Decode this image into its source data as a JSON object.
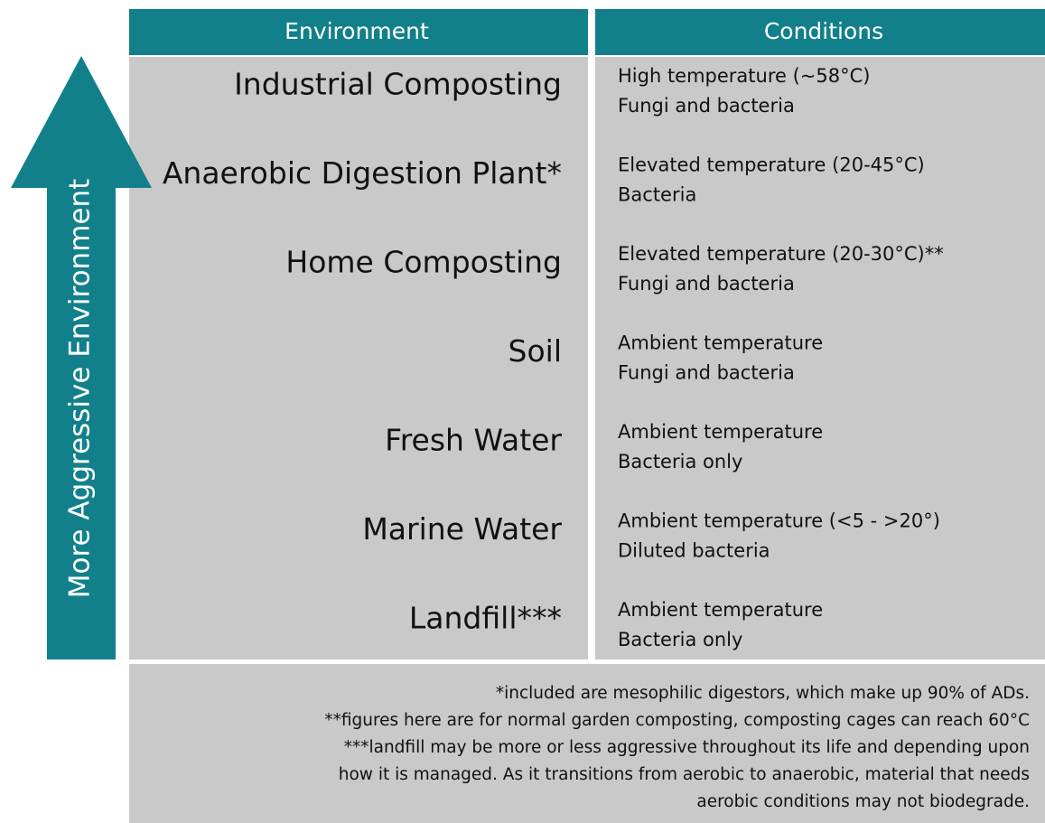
{
  "header": {
    "columns": [
      "Environment",
      "Conditions"
    ]
  },
  "arrow_label": "More Aggressive Environment",
  "rows": [
    {
      "environment": "Industrial Composting",
      "conditions": [
        "High temperature (~58°C)",
        "Fungi and bacteria"
      ]
    },
    {
      "environment": "Anaerobic Digestion Plant*",
      "conditions": [
        "Elevated temperature (20-45°C)",
        "Bacteria"
      ]
    },
    {
      "environment": "Home Composting",
      "conditions": [
        "Elevated temperature (20-30°C)**",
        "Fungi and bacteria"
      ]
    },
    {
      "environment": "Soil",
      "conditions": [
        "Ambient temperature",
        "Fungi and bacteria"
      ]
    },
    {
      "environment": "Fresh Water",
      "conditions": [
        "Ambient temperature",
        "Bacteria only"
      ]
    },
    {
      "environment": "Marine Water",
      "conditions": [
        "Ambient temperature (<5 - >20°)",
        "Diluted bacteria"
      ]
    },
    {
      "environment": "Landfill***",
      "conditions": [
        "Ambient temperature",
        "Bacteria only"
      ]
    }
  ],
  "footnotes": [
    "*included are mesophilic digestors, which make up 90% of ADs.",
    "**figures here are for normal garden composting, composting cages can reach 60°C",
    "***landfill may be more or less aggressive throughout its life and depending upon",
    "how it is managed. As it transitions from aerobic to anaerobic, material that needs",
    "aerobic conditions may not biodegrade."
  ]
}
